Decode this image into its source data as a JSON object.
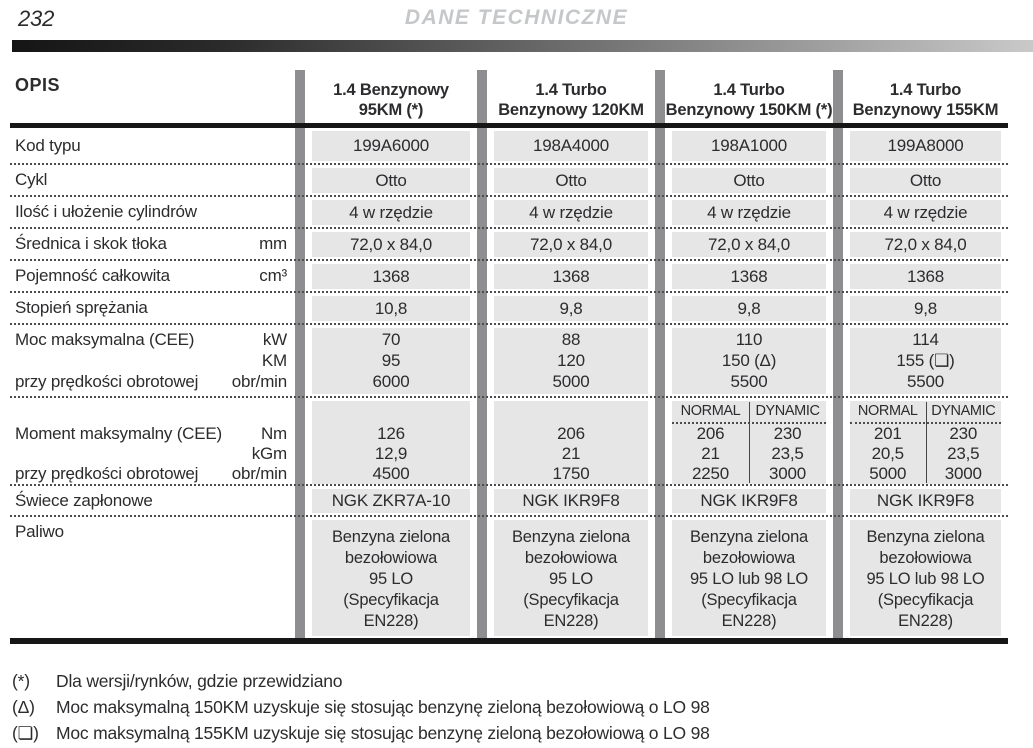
{
  "colors": {
    "cell_bg": "#e6e6e7",
    "separator_bar": "#8e8e90",
    "heavy_line": "#161616",
    "title_gray": "#c5c7c9",
    "text": "#2c2c2e"
  },
  "page": {
    "number": "232",
    "title": "DANE TECHNICZNE"
  },
  "table": {
    "opis": "OPIS",
    "columns": [
      {
        "title": [
          "1.4 Benzynowy",
          "95KM (*)"
        ]
      },
      {
        "title": [
          "1.4 Turbo",
          "Benzynowy 120KM"
        ]
      },
      {
        "title": [
          "1.4 Turbo",
          "Benzynowy 150KM (*)"
        ]
      },
      {
        "title": [
          "1.4 Turbo",
          "Benzynowy 155KM"
        ]
      }
    ],
    "rows": {
      "kod_typu": {
        "label": "Kod typu",
        "values": [
          "199A6000",
          "198A4000",
          "198A1000",
          "199A8000"
        ]
      },
      "cykl": {
        "label": "Cykl",
        "values": [
          "Otto",
          "Otto",
          "Otto",
          "Otto"
        ]
      },
      "cylindry": {
        "label": "Ilość i ułożenie cylindrów",
        "values": [
          "4 w rzędzie",
          "4 w rzędzie",
          "4 w rzędzie",
          "4 w rzędzie"
        ]
      },
      "srednica": {
        "label": "Średnica i skok tłoka",
        "unit": "mm",
        "values": [
          "72,0 x 84,0",
          "72,0 x 84,0",
          "72,0 x 84,0",
          "72,0 x 84,0"
        ]
      },
      "pojemnosc": {
        "label": "Pojemność całkowita",
        "unit": "cm³",
        "values": [
          "1368",
          "1368",
          "1368",
          "1368"
        ]
      },
      "stopien": {
        "label": "Stopień sprężania",
        "unit": "",
        "values": [
          "10,8",
          "9,8",
          "9,8",
          "9,8"
        ]
      },
      "moc": {
        "label_line1": "Moc maksymalna (CEE)",
        "unit_line1": "kW",
        "unit_line2": "KM",
        "label_line3": "przy prędkości obrotowej",
        "unit_line3": "obr/min",
        "values": [
          [
            "70",
            "95",
            "6000"
          ],
          [
            "88",
            "120",
            "5000"
          ],
          [
            "110",
            "150 (Δ)",
            "5500"
          ],
          [
            "114",
            "155 (❏)",
            "5500"
          ]
        ]
      },
      "moment": {
        "normal_label": "NORMAL",
        "dynamic_label": "DYNAMIC",
        "label_line1": "Moment maksymalny (CEE)",
        "unit_line1": "Nm",
        "unit_line2": "kGm",
        "label_line3": "przy prędkości obrotowej",
        "unit_line3": "obr/min",
        "values_simple": [
          [
            "126",
            "12,9",
            "4500"
          ],
          [
            "206",
            "21",
            "1750"
          ]
        ],
        "values_split": [
          {
            "normal": [
              "206",
              "21",
              "2250"
            ],
            "dynamic": [
              "230",
              "23,5",
              "3000"
            ]
          },
          {
            "normal": [
              "201",
              "20,5",
              "5000"
            ],
            "dynamic": [
              "230",
              "23,5",
              "3000"
            ]
          }
        ]
      },
      "swiece": {
        "label": "Świece zapłonowe",
        "values": [
          "NGK ZKR7A-10",
          "NGK IKR9F8",
          "NGK IKR9F8",
          "NGK IKR9F8"
        ]
      },
      "paliwo": {
        "label": "Paliwo",
        "values": [
          [
            "Benzyna zielona",
            "bezołowiowa",
            "95 LO",
            "(Specyfikacja",
            "EN228)"
          ],
          [
            "Benzyna zielona",
            "bezołowiowa",
            "95 LO",
            "(Specyfikacja",
            "EN228)"
          ],
          [
            "Benzyna zielona",
            "bezołowiowa",
            "95 LO lub 98 LO",
            "(Specyfikacja",
            "EN228)"
          ],
          [
            "Benzyna zielona",
            "bezołowiowa",
            "95 LO lub 98 LO",
            "(Specyfikacja",
            "EN228)"
          ]
        ]
      }
    }
  },
  "footnotes": [
    {
      "symbol": "(*)",
      "text": "Dla wersji/rynków, gdzie przewidziano"
    },
    {
      "symbol": "(Δ)",
      "text": "Moc maksymalną 150KM uzyskuje się stosując benzynę zieloną bezołowiową o LO 98"
    },
    {
      "symbol": "(❏)",
      "text": "Moc maksymalną 155KM uzyskuje się stosując benzynę zieloną bezołowiową o LO 98"
    }
  ]
}
